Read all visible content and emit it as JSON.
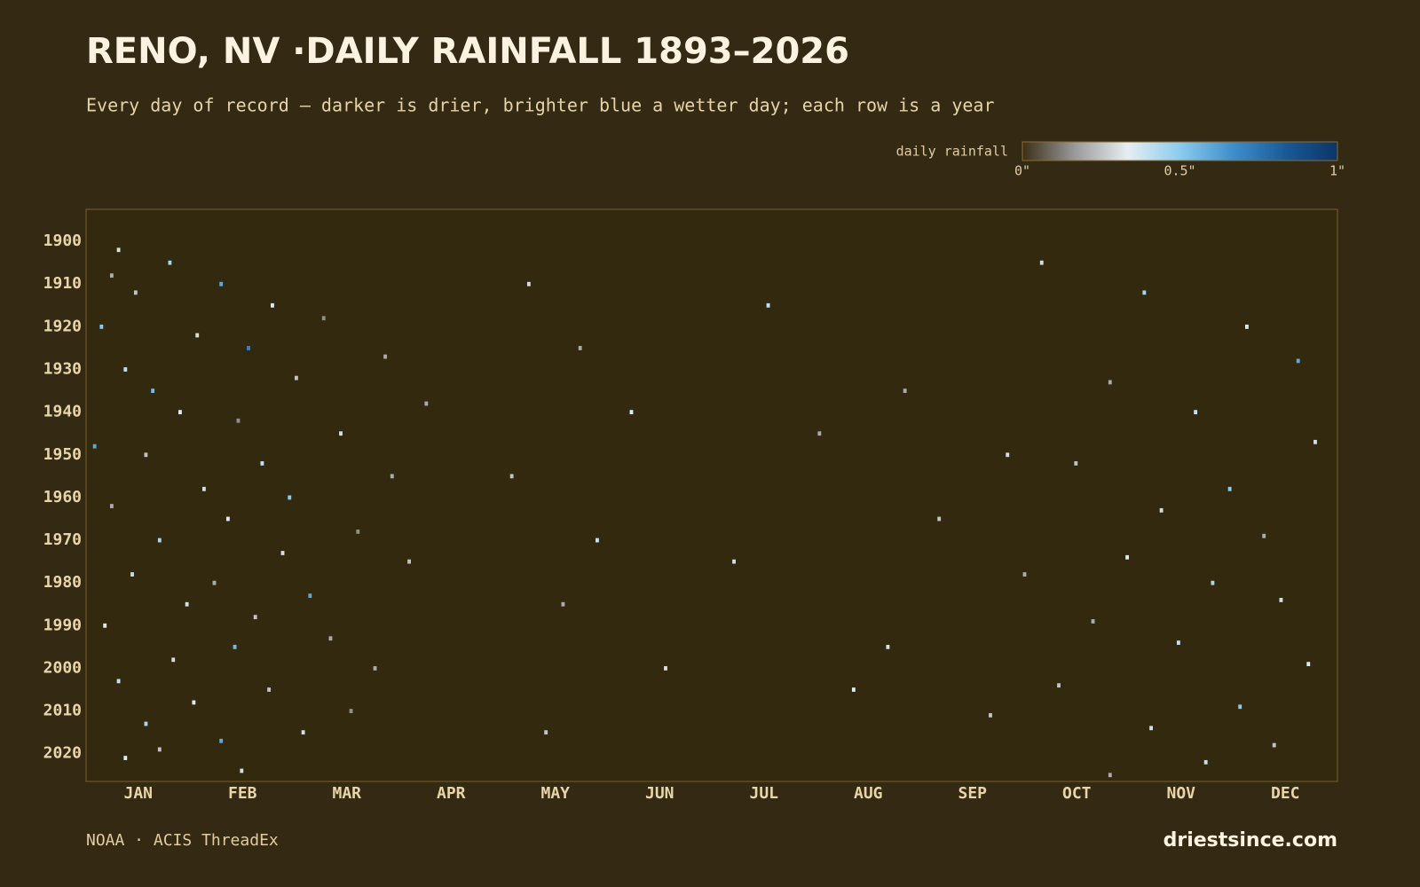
{
  "chart_data": {
    "type": "heatmap",
    "title": "RENO, NV ·DAILY RAINFALL 1893–2026",
    "subtitle": "Every day of record — darker is drier, brighter blue a wetter day; each row is a year",
    "legend_title": "daily rainfall",
    "colors": [
      "#3a2f18",
      "#9a9a9a",
      "#e6eef2",
      "#8ccbee",
      "#3f8fcc",
      "#1a5a98",
      "#0b3566"
    ],
    "clim": [
      0,
      1
    ],
    "cticks": [
      {
        "value": 0,
        "label": "0\""
      },
      {
        "value": 0.5,
        "label": "0.5\""
      },
      {
        "value": 1,
        "label": "1\""
      }
    ],
    "categories": [
      "JAN",
      "FEB",
      "MAR",
      "APR",
      "MAY",
      "JUN",
      "JUL",
      "AUG",
      "SEP",
      "OCT",
      "NOV",
      "DEC"
    ],
    "xlim": [
      1,
      366
    ],
    "ylim": [
      1893,
      2026
    ],
    "yticks": [
      1900,
      1910,
      1920,
      1930,
      1940,
      1950,
      1960,
      1970,
      1980,
      1990,
      2000,
      2010,
      2020
    ],
    "cells": {
      "year": [
        1902,
        1905,
        1908,
        1910,
        1912,
        1915,
        1918,
        1920,
        1922,
        1925,
        1927,
        1930,
        1932,
        1935,
        1938,
        1940,
        1942,
        1945,
        1948,
        1950,
        1952,
        1955,
        1958,
        1960,
        1962,
        1965,
        1968,
        1970,
        1973,
        1975,
        1978,
        1980,
        1983,
        1985,
        1988,
        1990,
        1993,
        1995,
        1998,
        2000,
        2003,
        2005,
        2008,
        2010,
        2013,
        2015,
        2017,
        2019,
        2021,
        2024,
        1910,
        1925,
        1940,
        1955,
        1970,
        1985,
        2000,
        2015,
        1915,
        1945,
        1975,
        2005,
        1935,
        1965,
        1995,
        1905,
        1912,
        1920,
        1928,
        1933,
        1940,
        1947,
        1952,
        1958,
        1963,
        1969,
        1974,
        1980,
        1984,
        1989,
        1994,
        1999,
        2004,
        2009,
        2014,
        2018,
        2022,
        2025,
        1950,
        1978,
        2011
      ],
      "day": [
        10,
        25,
        8,
        40,
        15,
        55,
        70,
        5,
        33,
        48,
        88,
        12,
        62,
        20,
        100,
        28,
        45,
        75,
        3,
        18,
        52,
        90,
        35,
        60,
        8,
        42,
        80,
        22,
        58,
        95,
        14,
        38,
        66,
        30,
        50,
        6,
        72,
        44,
        26,
        85,
        10,
        54,
        32,
        78,
        18,
        64,
        40,
        22,
        12,
        46,
        130,
        145,
        160,
        125,
        150,
        140,
        170,
        135,
        200,
        215,
        190,
        225,
        240,
        250,
        235,
        280,
        310,
        340,
        355,
        300,
        325,
        360,
        290,
        335,
        315,
        345,
        305,
        330,
        350,
        295,
        320,
        358,
        285,
        338,
        312,
        348,
        328,
        300,
        270,
        275,
        265
      ],
      "values": [
        0.3,
        0.45,
        0.2,
        0.6,
        0.25,
        0.35,
        0.15,
        0.5,
        0.3,
        0.7,
        0.2,
        0.4,
        0.25,
        0.55,
        0.2,
        0.35,
        0.15,
        0.3,
        0.6,
        0.25,
        0.4,
        0.2,
        0.3,
        0.5,
        0.2,
        0.35,
        0.15,
        0.45,
        0.3,
        0.25,
        0.4,
        0.2,
        0.6,
        0.3,
        0.25,
        0.35,
        0.2,
        0.55,
        0.3,
        0.2,
        0.4,
        0.25,
        0.35,
        0.15,
        0.45,
        0.3,
        0.6,
        0.25,
        0.35,
        0.3,
        0.3,
        0.2,
        0.35,
        0.25,
        0.4,
        0.2,
        0.3,
        0.25,
        0.4,
        0.2,
        0.3,
        0.35,
        0.2,
        0.25,
        0.3,
        0.3,
        0.45,
        0.35,
        0.6,
        0.2,
        0.4,
        0.3,
        0.25,
        0.5,
        0.3,
        0.2,
        0.35,
        0.45,
        0.3,
        0.2,
        0.4,
        0.35,
        0.25,
        0.5,
        0.3,
        0.25,
        0.4,
        0.2,
        0.3,
        0.2,
        0.25
      ]
    },
    "source": "NOAA · ACIS ThreadEx",
    "brand": "driestsince.com"
  }
}
